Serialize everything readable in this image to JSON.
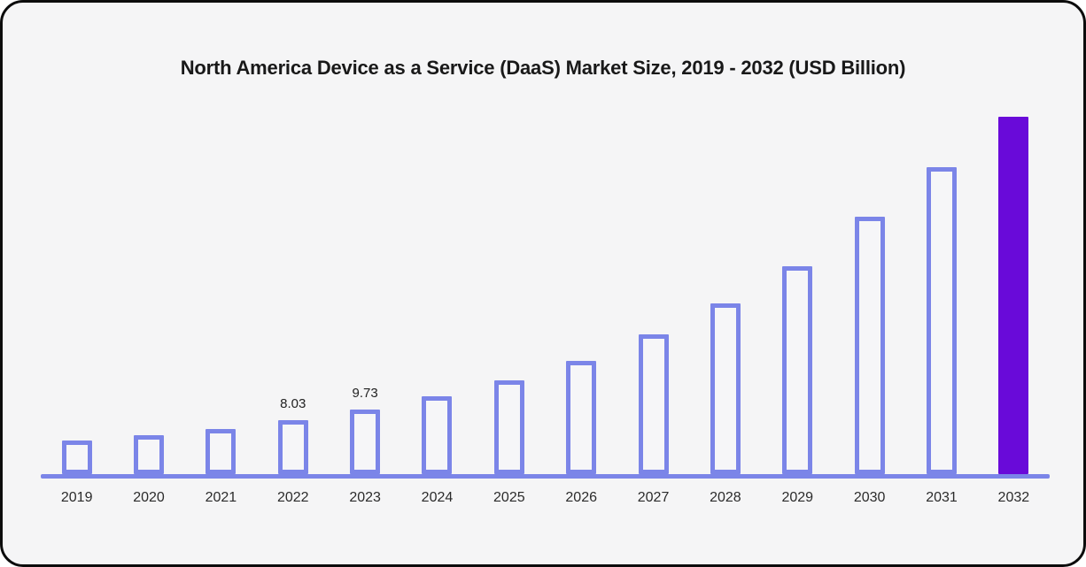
{
  "card": {
    "outer_background": "#ffffff",
    "background": "#f5f5f6",
    "border_color": "#0c0c0c"
  },
  "chart_data": {
    "type": "bar",
    "title": "North America Device as a Service (DaaS) Market Size, 2019 - 2032 (USD Billion)",
    "xlabel": "",
    "ylabel": "",
    "units": "USD Billion",
    "categories": [
      "2019",
      "2020",
      "2021",
      "2022",
      "2023",
      "2024",
      "2025",
      "2026",
      "2027",
      "2028",
      "2029",
      "2030",
      "2031",
      "2032"
    ],
    "values": [
      5.0,
      5.8,
      6.7,
      8.03,
      9.73,
      11.7,
      14.1,
      17.0,
      20.9,
      25.6,
      31.1,
      38.5,
      46.0,
      53.5
    ],
    "data_labels": [
      {
        "category": "2022",
        "text": "8.03"
      },
      {
        "category": "2023",
        "text": "9.73"
      }
    ],
    "highlight": {
      "category": "2032",
      "color": "#690ad9"
    },
    "ylim": [
      0,
      55
    ],
    "grid": false,
    "legend": false,
    "colors": {
      "bar_outline": "#7b85e8",
      "bar_fill": "#f6f6f8",
      "axis_line": "#7b85e8",
      "title_text": "#191919",
      "tick_text": "#2b2b2b",
      "value_label_text": "#222222"
    }
  }
}
